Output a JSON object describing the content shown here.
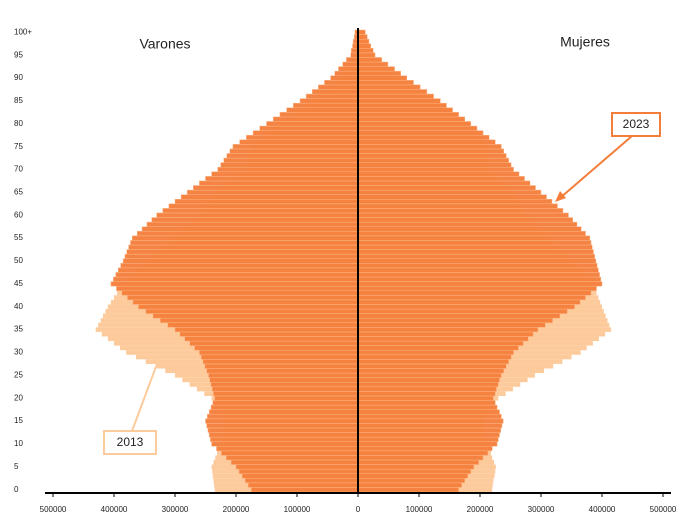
{
  "chart_data": {
    "type": "pyramid",
    "left_label": "Varones",
    "right_label": "Mujeres",
    "categories": [
      "0",
      null,
      null,
      null,
      null,
      "5",
      null,
      null,
      null,
      null,
      "10",
      null,
      null,
      null,
      null,
      "15",
      null,
      null,
      null,
      null,
      "20",
      null,
      null,
      null,
      null,
      "25",
      null,
      null,
      null,
      null,
      "30",
      null,
      null,
      null,
      null,
      "35",
      null,
      null,
      null,
      null,
      "40",
      null,
      null,
      null,
      null,
      "45",
      null,
      null,
      null,
      null,
      "50",
      null,
      null,
      null,
      null,
      "55",
      null,
      null,
      null,
      null,
      "60",
      null,
      null,
      null,
      null,
      "65",
      null,
      null,
      null,
      null,
      "70",
      null,
      null,
      null,
      null,
      "75",
      null,
      null,
      null,
      null,
      "80",
      null,
      null,
      null,
      null,
      "85",
      null,
      null,
      null,
      null,
      "90",
      null,
      null,
      null,
      null,
      "95",
      null,
      null,
      null,
      null,
      "100+"
    ],
    "xlim": [
      0,
      500000
    ],
    "xticks": [
      0,
      100000,
      200000,
      300000,
      400000,
      500000
    ],
    "series": [
      {
        "name": "2013",
        "color": "#fdca9c",
        "male": [
          235000,
          236000,
          237000,
          238000,
          239000,
          240000,
          237000,
          234000,
          231000,
          228000,
          225000,
          223000,
          221000,
          219000,
          217000,
          215000,
          220000,
          225000,
          230000,
          235000,
          240000,
          252000,
          264000,
          276000,
          288000,
          300000,
          316000,
          332000,
          348000,
          364000,
          380000,
          390000,
          400000,
          410000,
          420000,
          430000,
          426000,
          422000,
          418000,
          414000,
          410000,
          405000,
          400000,
          395000,
          390000,
          385000,
          377000,
          369000,
          361000,
          353000,
          345000,
          336000,
          327000,
          318000,
          309000,
          300000,
          292000,
          284000,
          276000,
          268000,
          260000,
          255000,
          250000,
          245000,
          240000,
          235000,
          225000,
          215000,
          205000,
          195000,
          185000,
          183000,
          181000,
          179000,
          177000,
          175000,
          166000,
          157000,
          148000,
          139000,
          130000,
          119000,
          108000,
          97000,
          86000,
          75000,
          66000,
          57000,
          48000,
          39000,
          30000,
          25000,
          21000,
          16000,
          11000,
          6000,
          5000,
          4000,
          4000,
          3000,
          2000
        ],
        "female": [
          220000,
          221000,
          222000,
          224000,
          225000,
          226000,
          223000,
          220000,
          218000,
          215000,
          212000,
          210000,
          208000,
          207000,
          205000,
          203000,
          208000,
          214000,
          219000,
          225000,
          230000,
          242000,
          254000,
          266000,
          278000,
          290000,
          305000,
          320000,
          335000,
          350000,
          365000,
          375000,
          385000,
          395000,
          405000,
          415000,
          412000,
          409000,
          406000,
          403000,
          400000,
          397000,
          394000,
          391000,
          388000,
          385000,
          378000,
          371000,
          364000,
          357000,
          350000,
          342000,
          334000,
          326000,
          318000,
          310000,
          303000,
          296000,
          289000,
          282000,
          275000,
          271000,
          267000,
          263000,
          259000,
          255000,
          246000,
          237000,
          228000,
          219000,
          210000,
          211000,
          212000,
          213000,
          214000,
          215000,
          209000,
          203000,
          197000,
          191000,
          185000,
          175000,
          165000,
          155000,
          145000,
          135000,
          122000,
          109000,
          96000,
          83000,
          70000,
          60000,
          50000,
          40000,
          30000,
          20000,
          18000,
          15000,
          13000,
          10000,
          8000
        ]
      },
      {
        "name": "2023",
        "color": "#f47d3a",
        "male": [
          175000,
          180000,
          185000,
          190000,
          195000,
          200000,
          208000,
          216000,
          224000,
          232000,
          240000,
          242000,
          244000,
          246000,
          248000,
          250000,
          247000,
          244000,
          241000,
          238000,
          235000,
          237000,
          239000,
          241000,
          243000,
          245000,
          248000,
          251000,
          254000,
          257000,
          260000,
          268000,
          276000,
          284000,
          292000,
          300000,
          312000,
          324000,
          336000,
          348000,
          360000,
          369000,
          378000,
          387000,
          396000,
          405000,
          401000,
          397000,
          393000,
          389000,
          385000,
          382000,
          379000,
          376000,
          373000,
          370000,
          362000,
          354000,
          346000,
          338000,
          330000,
          320000,
          310000,
          300000,
          290000,
          280000,
          270000,
          260000,
          250000,
          240000,
          230000,
          225000,
          220000,
          215000,
          210000,
          205000,
          194000,
          183000,
          172000,
          161000,
          150000,
          139000,
          128000,
          117000,
          106000,
          95000,
          85000,
          75000,
          65000,
          55000,
          45000,
          38000,
          32000,
          25000,
          19000,
          12000,
          11000,
          9000,
          8000,
          6000,
          5000
        ],
        "female": [
          165000,
          170000,
          175000,
          180000,
          185000,
          190000,
          198000,
          205000,
          213000,
          220000,
          228000,
          230000,
          232000,
          234000,
          236000,
          238000,
          235000,
          232000,
          228000,
          225000,
          222000,
          225000,
          227000,
          230000,
          232000,
          235000,
          239000,
          243000,
          247000,
          251000,
          255000,
          263000,
          271000,
          279000,
          287000,
          295000,
          307000,
          319000,
          331000,
          343000,
          355000,
          364000,
          373000,
          382000,
          391000,
          400000,
          398000,
          396000,
          394000,
          392000,
          390000,
          388000,
          386000,
          384000,
          382000,
          380000,
          373000,
          366000,
          359000,
          352000,
          345000,
          336000,
          327000,
          318000,
          309000,
          300000,
          291000,
          282000,
          273000,
          264000,
          255000,
          251000,
          247000,
          243000,
          239000,
          235000,
          225000,
          215000,
          205000,
          195000,
          185000,
          175000,
          165000,
          155000,
          145000,
          135000,
          124000,
          113000,
          102000,
          91000,
          80000,
          70000,
          60000,
          49000,
          39000,
          28000,
          25000,
          21000,
          18000,
          15000,
          12000
        ]
      }
    ]
  }
}
